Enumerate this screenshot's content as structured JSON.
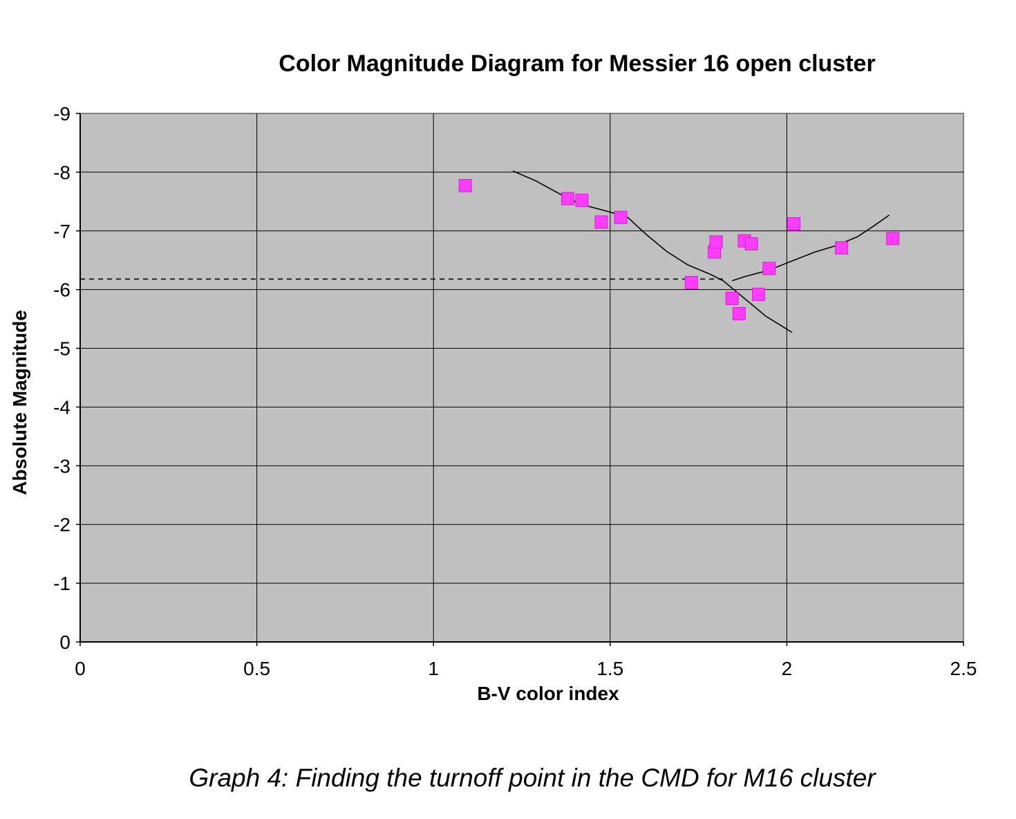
{
  "chart_data": {
    "type": "scatter",
    "title": "Color Magnitude Diagram for Messier 16 open cluster",
    "xlabel": "B-V color index",
    "ylabel": "Absolute Magnitude",
    "xlim": [
      0,
      2.5
    ],
    "ylim": [
      0,
      -9
    ],
    "y_inverted": true,
    "grid": true,
    "plot_background": "#c0c0c0",
    "x_ticks": [
      {
        "value": 0,
        "label": "0"
      },
      {
        "value": 0.5,
        "label": "0.5"
      },
      {
        "value": 1,
        "label": "1"
      },
      {
        "value": 1.5,
        "label": "1.5"
      },
      {
        "value": 2,
        "label": "2"
      },
      {
        "value": 2.5,
        "label": "2.5"
      }
    ],
    "y_ticks": [
      {
        "value": -9,
        "label": "-9"
      },
      {
        "value": -8,
        "label": "-8"
      },
      {
        "value": -7,
        "label": "-7"
      },
      {
        "value": -6,
        "label": "-6"
      },
      {
        "value": -5,
        "label": "-5"
      },
      {
        "value": -4,
        "label": "-4"
      },
      {
        "value": -3,
        "label": "-3"
      },
      {
        "value": -2,
        "label": "-2"
      },
      {
        "value": -1,
        "label": "-1"
      },
      {
        "value": 0,
        "label": "0"
      }
    ],
    "series": [
      {
        "marker": "square",
        "color": "#ff3cff",
        "points": [
          {
            "x": 1.09,
            "y": -7.77
          },
          {
            "x": 1.38,
            "y": -7.55
          },
          {
            "x": 1.42,
            "y": -7.52
          },
          {
            "x": 1.475,
            "y": -7.15
          },
          {
            "x": 1.53,
            "y": -7.23
          },
          {
            "x": 1.73,
            "y": -6.12
          },
          {
            "x": 1.795,
            "y": -6.64
          },
          {
            "x": 1.8,
            "y": -6.81
          },
          {
            "x": 1.845,
            "y": -5.85
          },
          {
            "x": 1.865,
            "y": -5.59
          },
          {
            "x": 1.88,
            "y": -6.83
          },
          {
            "x": 1.9,
            "y": -6.78
          },
          {
            "x": 1.92,
            "y": -5.92
          },
          {
            "x": 1.95,
            "y": -6.36
          },
          {
            "x": 2.02,
            "y": -7.12
          },
          {
            "x": 2.155,
            "y": -6.71
          },
          {
            "x": 2.3,
            "y": -6.87
          }
        ]
      }
    ],
    "curves": [
      {
        "style": "solid",
        "color": "#000000",
        "points": [
          [
            1.225,
            -8.02
          ],
          [
            1.29,
            -7.85
          ],
          [
            1.36,
            -7.62
          ],
          [
            1.42,
            -7.45
          ],
          [
            1.5,
            -7.32
          ],
          [
            1.55,
            -7.23
          ],
          [
            1.6,
            -6.95
          ],
          [
            1.66,
            -6.65
          ],
          [
            1.72,
            -6.42
          ],
          [
            1.78,
            -6.27
          ],
          [
            1.82,
            -6.15
          ],
          [
            1.86,
            -5.95
          ],
          [
            1.9,
            -5.75
          ],
          [
            1.94,
            -5.55
          ],
          [
            1.98,
            -5.4
          ],
          [
            2.015,
            -5.27
          ]
        ]
      },
      {
        "style": "solid",
        "color": "#000000",
        "points": [
          [
            1.845,
            -6.15
          ],
          [
            1.88,
            -6.22
          ],
          [
            1.93,
            -6.3
          ],
          [
            1.97,
            -6.38
          ],
          [
            2.02,
            -6.5
          ],
          [
            2.08,
            -6.64
          ],
          [
            2.14,
            -6.75
          ],
          [
            2.2,
            -6.9
          ],
          [
            2.25,
            -7.1
          ],
          [
            2.29,
            -7.27
          ]
        ]
      },
      {
        "style": "dashed",
        "color": "#000000",
        "points": [
          [
            0,
            -6.18
          ],
          [
            1.83,
            -6.18
          ]
        ]
      }
    ]
  },
  "caption": "Graph 4: Finding the turnoff point in the CMD for M16 cluster"
}
